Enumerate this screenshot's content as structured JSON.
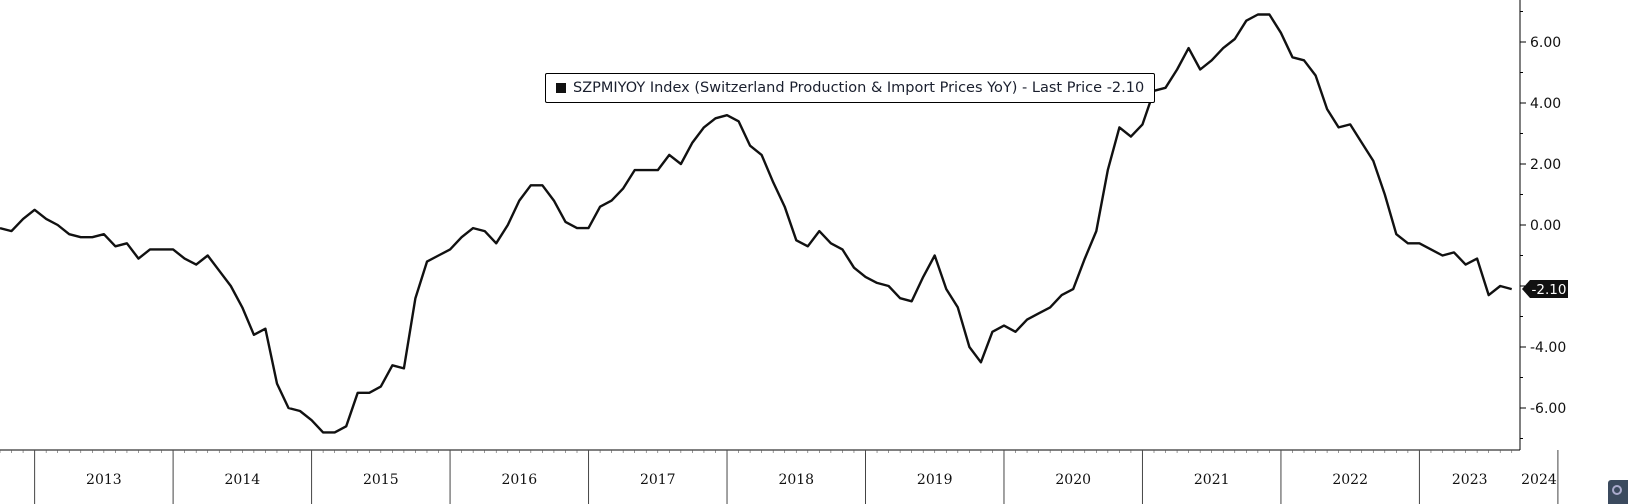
{
  "legend": {
    "label": "SZPMIYOY Index (Switzerland Production & Import Prices YoY) - Last Price -2.10",
    "swatch_color": "#111111"
  },
  "last_price_badge": "-2.10",
  "colors": {
    "line": "#111111",
    "axis": "#000000",
    "badge_bg": "#111111",
    "badge_text": "#ffffff"
  },
  "chart_data": {
    "type": "line",
    "title": "",
    "xlabel": "",
    "ylabel": "",
    "ylim": [
      -7.3,
      7.3
    ],
    "yticks": [
      6,
      4,
      2,
      0,
      -2,
      -4,
      -6
    ],
    "ytick_labels": [
      "6.00",
      "4.00",
      "2.00",
      "0.00",
      "",
      "-4.00",
      "-6.00"
    ],
    "y_axis_side": "right",
    "grid": false,
    "x_start": "2012-10",
    "x_end": "2024-05",
    "year_labels": [
      "2013",
      "2014",
      "2015",
      "2016",
      "2017",
      "2018",
      "2019",
      "2020",
      "2021",
      "2022",
      "2023",
      "2024"
    ],
    "series": [
      {
        "name": "SZPMIYOY Index",
        "last_value": -2.1,
        "points": [
          [
            "2012-10",
            -0.1
          ],
          [
            "2012-11",
            -0.2
          ],
          [
            "2012-12",
            0.2
          ],
          [
            "2013-01",
            0.5
          ],
          [
            "2013-02",
            0.2
          ],
          [
            "2013-03",
            0.0
          ],
          [
            "2013-04",
            -0.3
          ],
          [
            "2013-05",
            -0.4
          ],
          [
            "2013-06",
            -0.4
          ],
          [
            "2013-07",
            -0.3
          ],
          [
            "2013-08",
            -0.7
          ],
          [
            "2013-09",
            -0.6
          ],
          [
            "2013-10",
            -1.1
          ],
          [
            "2013-11",
            -0.8
          ],
          [
            "2013-12",
            -0.8
          ],
          [
            "2014-01",
            -0.8
          ],
          [
            "2014-02",
            -1.1
          ],
          [
            "2014-03",
            -1.3
          ],
          [
            "2014-04",
            -1.0
          ],
          [
            "2014-05",
            -1.5
          ],
          [
            "2014-06",
            -2.0
          ],
          [
            "2014-07",
            -2.7
          ],
          [
            "2014-08",
            -3.6
          ],
          [
            "2014-09",
            -3.4
          ],
          [
            "2014-10",
            -5.2
          ],
          [
            "2014-11",
            -6.0
          ],
          [
            "2014-12",
            -6.1
          ],
          [
            "2015-01",
            -6.4
          ],
          [
            "2015-02",
            -6.8
          ],
          [
            "2015-03",
            -6.8
          ],
          [
            "2015-04",
            -6.6
          ],
          [
            "2015-05",
            -5.5
          ],
          [
            "2015-06",
            -5.5
          ],
          [
            "2015-07",
            -5.3
          ],
          [
            "2015-08",
            -4.6
          ],
          [
            "2015-09",
            -4.7
          ],
          [
            "2015-10",
            -2.4
          ],
          [
            "2015-11",
            -1.2
          ],
          [
            "2015-12",
            -1.0
          ],
          [
            "2016-01",
            -0.8
          ],
          [
            "2016-02",
            -0.4
          ],
          [
            "2016-03",
            -0.1
          ],
          [
            "2016-04",
            -0.2
          ],
          [
            "2016-05",
            -0.6
          ],
          [
            "2016-06",
            0.0
          ],
          [
            "2016-07",
            0.8
          ],
          [
            "2016-08",
            1.3
          ],
          [
            "2016-09",
            1.3
          ],
          [
            "2016-10",
            0.8
          ],
          [
            "2016-11",
            0.1
          ],
          [
            "2016-12",
            -0.1
          ],
          [
            "2017-01",
            -0.1
          ],
          [
            "2017-02",
            0.6
          ],
          [
            "2017-03",
            0.8
          ],
          [
            "2017-04",
            1.2
          ],
          [
            "2017-05",
            1.8
          ],
          [
            "2017-06",
            1.8
          ],
          [
            "2017-07",
            1.8
          ],
          [
            "2017-08",
            2.3
          ],
          [
            "2017-09",
            2.0
          ],
          [
            "2017-10",
            2.7
          ],
          [
            "2017-11",
            3.2
          ],
          [
            "2017-12",
            3.5
          ],
          [
            "2018-01",
            3.6
          ],
          [
            "2018-02",
            3.4
          ],
          [
            "2018-03",
            2.6
          ],
          [
            "2018-04",
            2.3
          ],
          [
            "2018-05",
            1.4
          ],
          [
            "2018-06",
            0.6
          ],
          [
            "2018-07",
            -0.5
          ],
          [
            "2018-08",
            -0.7
          ],
          [
            "2018-09",
            -0.2
          ],
          [
            "2018-10",
            -0.6
          ],
          [
            "2018-11",
            -0.8
          ],
          [
            "2018-12",
            -1.4
          ],
          [
            "2019-01",
            -1.7
          ],
          [
            "2019-02",
            -1.9
          ],
          [
            "2019-03",
            -2.0
          ],
          [
            "2019-04",
            -2.4
          ],
          [
            "2019-05",
            -2.5
          ],
          [
            "2019-06",
            -1.7
          ],
          [
            "2019-07",
            -1.0
          ],
          [
            "2019-08",
            -2.1
          ],
          [
            "2019-09",
            -2.7
          ],
          [
            "2019-10",
            -4.0
          ],
          [
            "2019-11",
            -4.5
          ],
          [
            "2019-12",
            -3.5
          ],
          [
            "2020-01",
            -3.3
          ],
          [
            "2020-02",
            -3.5
          ],
          [
            "2020-03",
            -3.1
          ],
          [
            "2020-04",
            -2.9
          ],
          [
            "2020-05",
            -2.7
          ],
          [
            "2020-06",
            -2.3
          ],
          [
            "2020-07",
            -2.1
          ],
          [
            "2020-08",
            -1.1
          ],
          [
            "2020-09",
            -0.2
          ],
          [
            "2020-10",
            1.8
          ],
          [
            "2020-11",
            3.2
          ],
          [
            "2020-12",
            2.9
          ],
          [
            "2021-01",
            3.3
          ],
          [
            "2021-02",
            4.4
          ],
          [
            "2021-03",
            4.5
          ],
          [
            "2021-04",
            5.1
          ],
          [
            "2021-05",
            5.8
          ],
          [
            "2021-06",
            5.1
          ],
          [
            "2021-07",
            5.4
          ],
          [
            "2021-08",
            5.8
          ],
          [
            "2021-09",
            6.1
          ],
          [
            "2021-10",
            6.7
          ],
          [
            "2021-11",
            6.9
          ],
          [
            "2021-12",
            6.9
          ],
          [
            "2022-01",
            6.3
          ],
          [
            "2022-02",
            5.5
          ],
          [
            "2022-03",
            5.4
          ],
          [
            "2022-04",
            4.9
          ],
          [
            "2022-05",
            3.8
          ],
          [
            "2022-06",
            3.2
          ],
          [
            "2022-07",
            3.3
          ],
          [
            "2022-08",
            2.7
          ],
          [
            "2022-09",
            2.1
          ],
          [
            "2022-10",
            1.0
          ],
          [
            "2022-11",
            -0.3
          ],
          [
            "2022-12",
            -0.6
          ],
          [
            "2023-01",
            -0.6
          ],
          [
            "2023-02",
            -0.8
          ],
          [
            "2023-03",
            -1.0
          ],
          [
            "2023-04",
            -0.9
          ],
          [
            "2023-05",
            -1.3
          ],
          [
            "2023-06",
            -1.1
          ],
          [
            "2023-07",
            -2.3
          ],
          [
            "2023-08",
            -2.0
          ],
          [
            "2023-09",
            -2.1
          ]
        ]
      }
    ]
  }
}
